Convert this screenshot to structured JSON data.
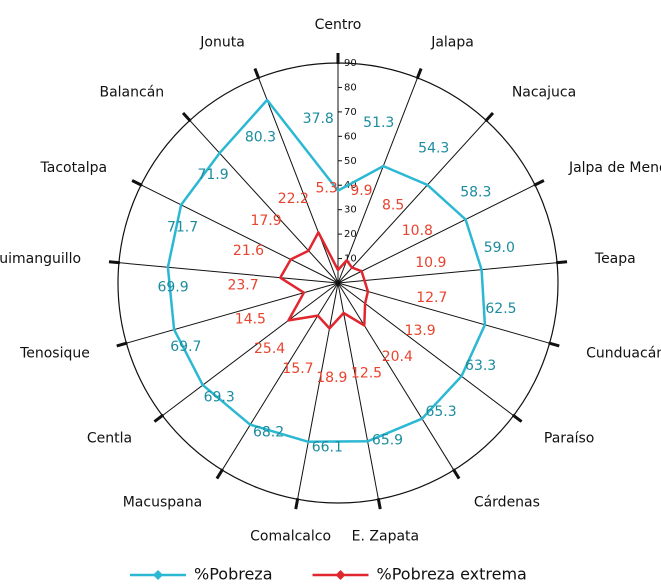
{
  "chart_data": {
    "type": "radar",
    "categories": [
      "Centro",
      "Jalapa",
      "Nacajuca",
      "Jalpa de Mendez",
      "Teapa",
      "Cunduacán",
      "Paraíso",
      "Cárdenas",
      "E. Zapata",
      "Comalcalco",
      "Macuspana",
      "Centla",
      "Tenosique",
      "Huimanguillo",
      "Tacotalpa",
      "Balancán",
      "Jonuta"
    ],
    "series": [
      {
        "name": "%Pobreza",
        "color": "#2bb8d3",
        "label_color": "#1b8c9e",
        "values": [
          37.8,
          51.3,
          54.3,
          58.3,
          59.0,
          62.5,
          63.3,
          65.3,
          65.9,
          66.1,
          68.2,
          69.3,
          69.7,
          69.9,
          71.7,
          71.9,
          80.3
        ],
        "value_labels": [
          "37.8",
          "51.3",
          "54.3",
          "58.3",
          "59.0",
          "62.5",
          "63.3",
          "65.3",
          "65.9",
          "66.1",
          "68.2",
          "69.3",
          "69.7",
          "69.9",
          "71.7",
          "71.9",
          "80.3"
        ]
      },
      {
        "name": "%Pobreza extrema",
        "color": "#e0262e",
        "label_color": "#e8432e",
        "values": [
          5.3,
          9.9,
          8.5,
          10.8,
          10.9,
          12.7,
          13.9,
          20.4,
          12.5,
          18.9,
          15.7,
          25.4,
          14.5,
          23.7,
          21.6,
          17.9,
          22.2
        ],
        "value_labels": [
          "5.3",
          "9.9",
          "8.5",
          "10.8",
          "10.9",
          "12.7",
          "13.9",
          "20.4",
          "12.5",
          "18.9",
          "15.7",
          "25.4",
          "14.5",
          "23.7",
          "21.6",
          "17.9",
          "22.2"
        ]
      }
    ],
    "ylim": [
      0,
      90
    ],
    "yticks": [
      10,
      20,
      30,
      40,
      50,
      60,
      70,
      80,
      90
    ],
    "legend": "bottom"
  }
}
